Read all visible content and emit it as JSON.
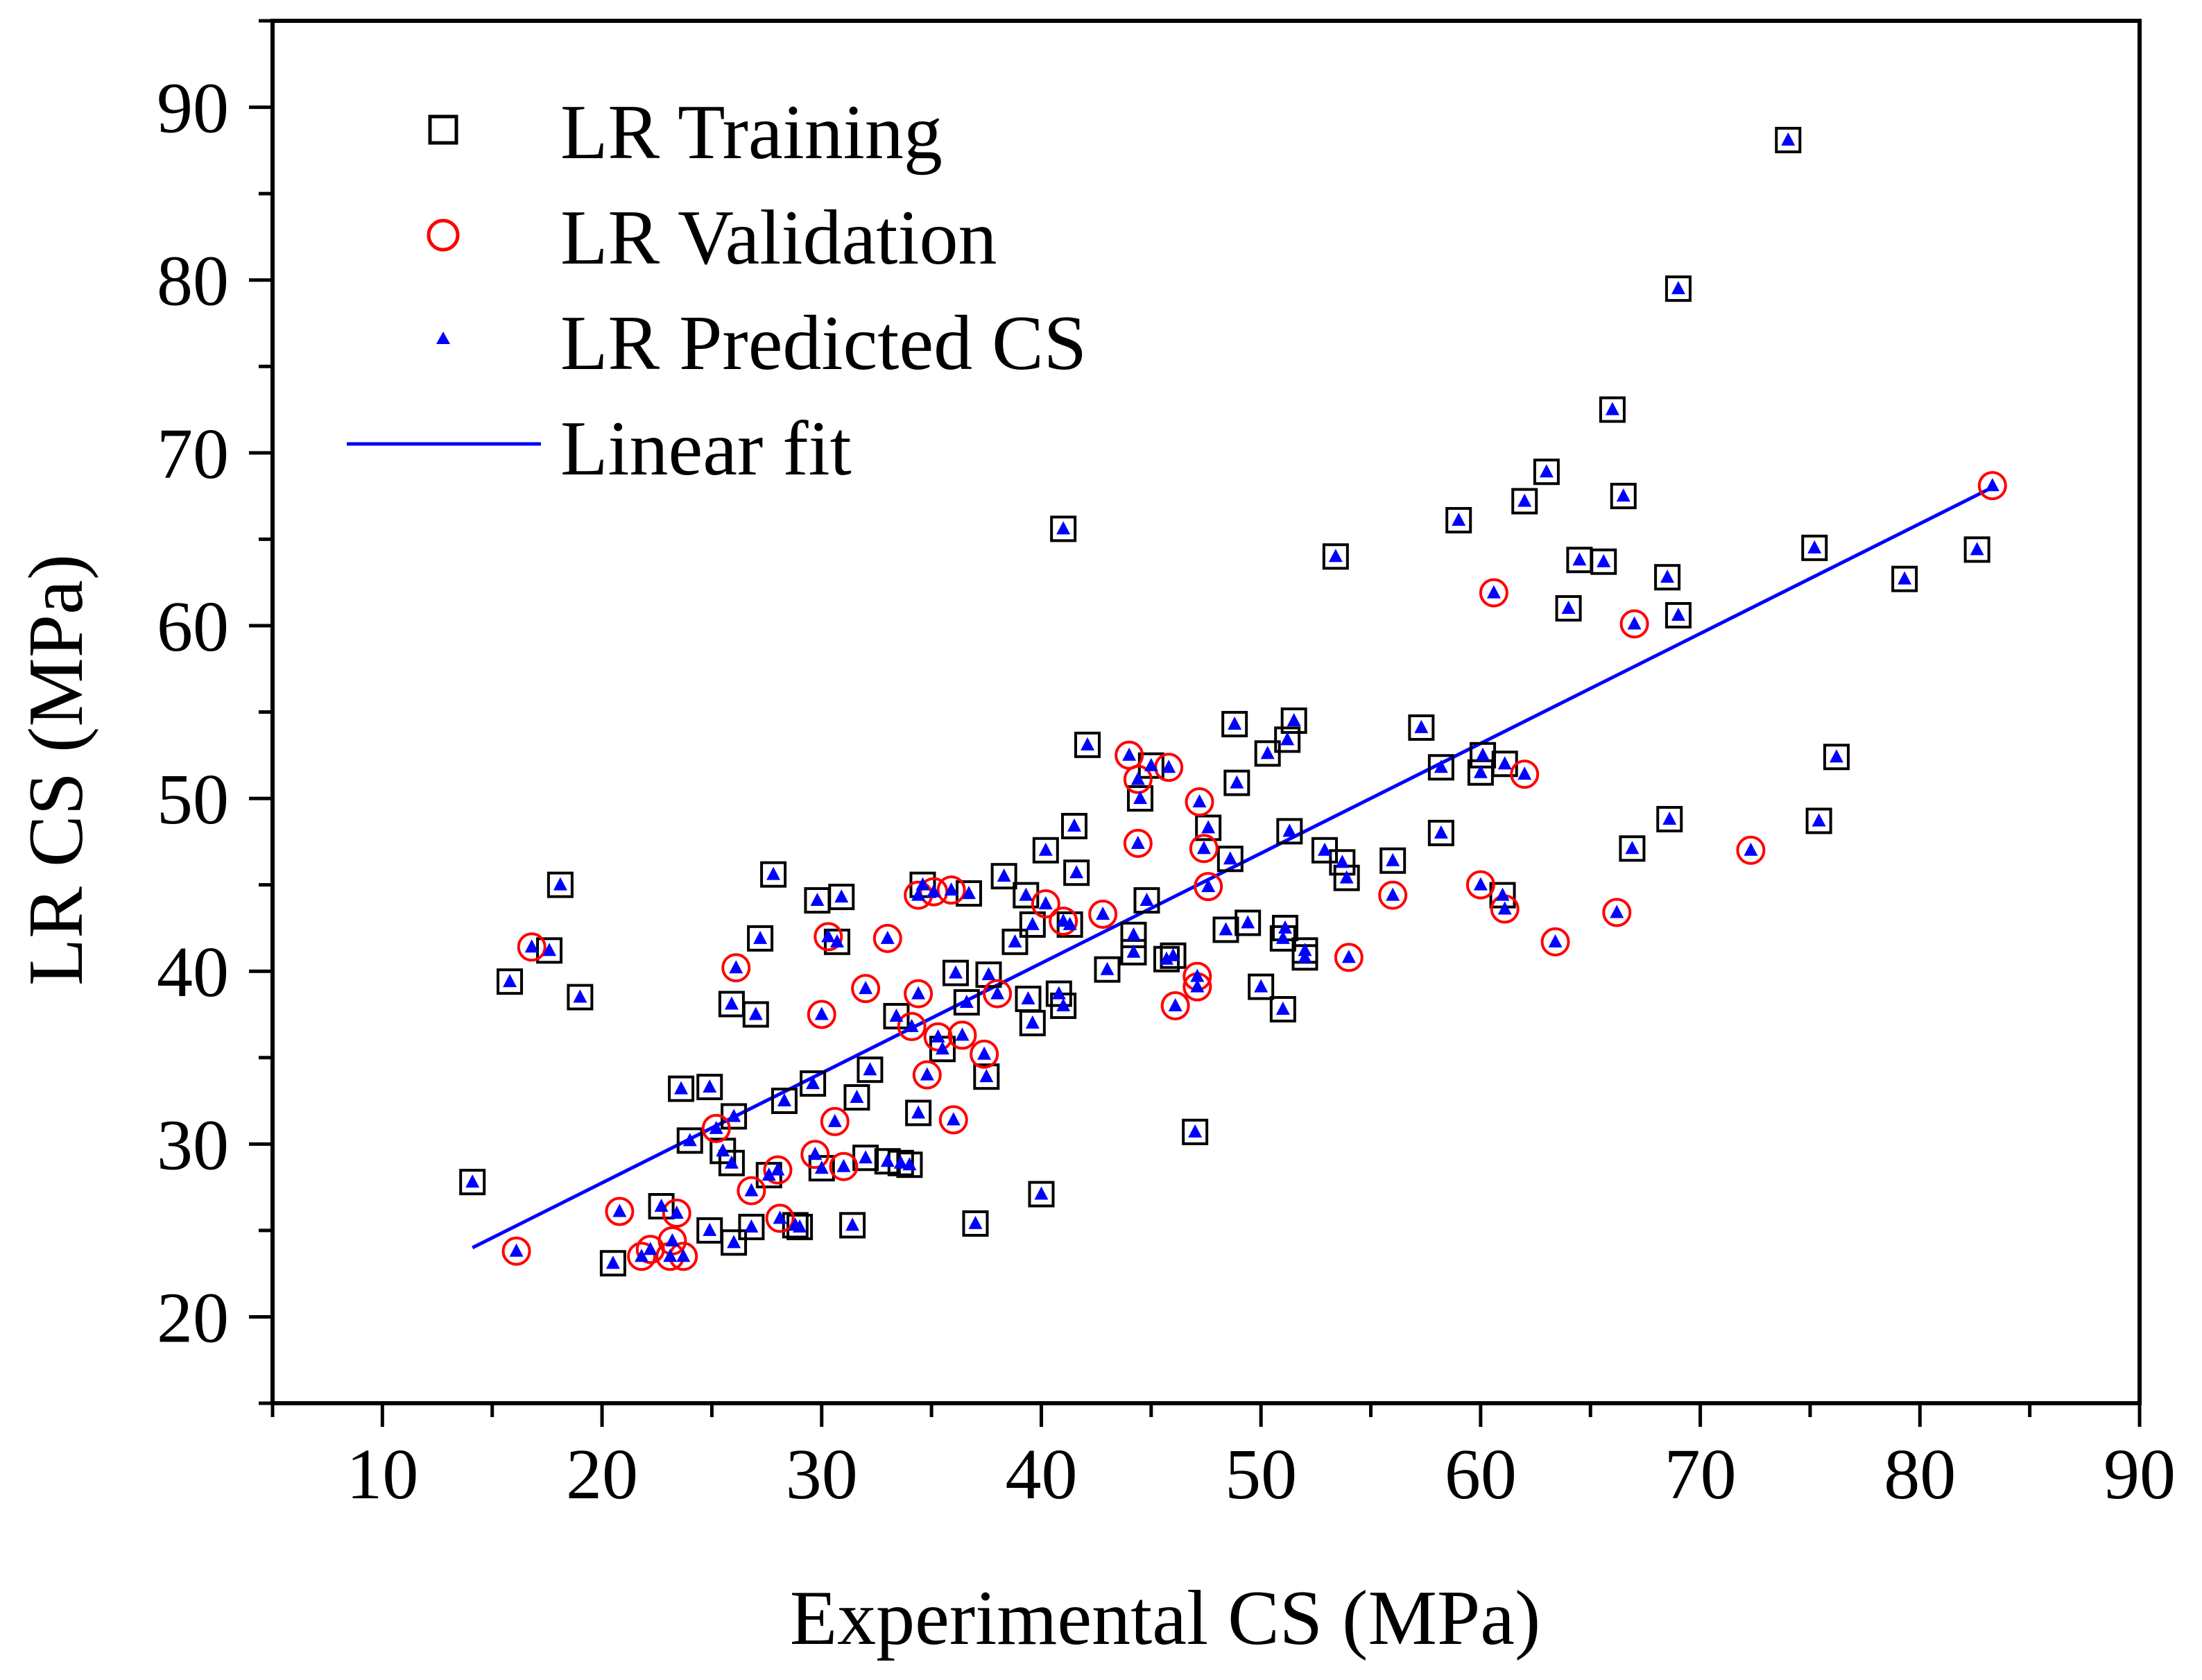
{
  "colors": {
    "training": "#000000",
    "validation": "#ff0000",
    "predicted": "#0000ff",
    "fit": "#0000ff",
    "axes": "#000000"
  },
  "legend": {
    "training_label": "LR Training",
    "validation_label": "LR Validation",
    "predicted_label": "LR Predicted CS",
    "fit_label": "Linear fit",
    "placement": "top-left"
  },
  "chart_data": {
    "type": "scatter",
    "title": "",
    "xlabel": "Experimental CS (MPa)",
    "ylabel": "LR CS (MPa)",
    "xlim": [
      5,
      90
    ],
    "ylim": [
      15,
      95
    ],
    "xticks": [
      "10",
      "20",
      "30",
      "40",
      "50",
      "60",
      "70",
      "80",
      "90"
    ],
    "yticks": [
      "20",
      "30",
      "40",
      "50",
      "60",
      "70",
      "80",
      "90"
    ],
    "grid": false,
    "series": [
      {
        "name": "LR Training",
        "marker": "open-square",
        "points": [
          [
            14.1,
            27.8
          ],
          [
            15.8,
            39.4
          ],
          [
            17.6,
            41.2
          ],
          [
            18.1,
            45.0
          ],
          [
            19.0,
            38.5
          ],
          [
            20.5,
            23.1
          ],
          [
            22.7,
            26.4
          ],
          [
            23.6,
            33.2
          ],
          [
            24.0,
            30.2
          ],
          [
            24.9,
            25.0
          ],
          [
            24.9,
            33.3
          ],
          [
            25.5,
            29.6
          ],
          [
            25.9,
            38.1
          ],
          [
            25.9,
            28.9
          ],
          [
            26.0,
            31.6
          ],
          [
            26.0,
            24.3
          ],
          [
            26.8,
            25.2
          ],
          [
            27.0,
            37.5
          ],
          [
            27.2,
            41.9
          ],
          [
            27.6,
            28.2
          ],
          [
            27.8,
            45.6
          ],
          [
            28.3,
            32.5
          ],
          [
            28.8,
            25.3
          ],
          [
            29.0,
            25.2
          ],
          [
            29.6,
            33.5
          ],
          [
            29.8,
            44.1
          ],
          [
            30.0,
            28.6
          ],
          [
            30.7,
            41.7
          ],
          [
            30.9,
            44.3
          ],
          [
            31.4,
            25.3
          ],
          [
            31.6,
            32.7
          ],
          [
            32.0,
            29.2
          ],
          [
            32.2,
            34.3
          ],
          [
            33.0,
            29.0
          ],
          [
            33.4,
            37.4
          ],
          [
            33.6,
            28.9
          ],
          [
            34.0,
            28.8
          ],
          [
            34.4,
            31.8
          ],
          [
            34.6,
            45.0
          ],
          [
            35.5,
            35.5
          ],
          [
            36.1,
            39.9
          ],
          [
            36.6,
            38.2
          ],
          [
            36.7,
            44.5
          ],
          [
            37.0,
            25.4
          ],
          [
            37.5,
            33.9
          ],
          [
            37.6,
            39.8
          ],
          [
            38.3,
            45.5
          ],
          [
            38.8,
            41.7
          ],
          [
            39.3,
            44.4
          ],
          [
            39.4,
            38.4
          ],
          [
            39.6,
            37.0
          ],
          [
            39.6,
            42.7
          ],
          [
            40.0,
            27.1
          ],
          [
            40.2,
            47.0
          ],
          [
            40.8,
            38.7
          ],
          [
            41.0,
            38.0
          ],
          [
            41.0,
            65.6
          ],
          [
            41.3,
            42.7
          ],
          [
            41.5,
            48.4
          ],
          [
            41.6,
            45.7
          ],
          [
            42.1,
            53.1
          ],
          [
            43.0,
            40.1
          ],
          [
            44.2,
            42.1
          ],
          [
            44.2,
            41.1
          ],
          [
            44.5,
            50.0
          ],
          [
            44.8,
            44.1
          ],
          [
            45.0,
            51.9
          ],
          [
            45.7,
            40.7
          ],
          [
            46.0,
            40.9
          ],
          [
            47.0,
            30.7
          ],
          [
            47.6,
            48.3
          ],
          [
            48.4,
            42.4
          ],
          [
            48.6,
            46.5
          ],
          [
            48.8,
            54.3
          ],
          [
            48.9,
            50.9
          ],
          [
            49.4,
            42.8
          ],
          [
            50.0,
            39.1
          ],
          [
            50.3,
            52.6
          ],
          [
            51.0,
            37.8
          ],
          [
            51.0,
            41.9
          ],
          [
            51.1,
            42.5
          ],
          [
            51.2,
            53.4
          ],
          [
            51.3,
            48.1
          ],
          [
            51.5,
            54.5
          ],
          [
            52.0,
            41.2
          ],
          [
            52.0,
            40.8
          ],
          [
            52.9,
            47.0
          ],
          [
            53.4,
            64.0
          ],
          [
            53.7,
            46.3
          ],
          [
            53.9,
            45.4
          ],
          [
            56.0,
            46.4
          ],
          [
            57.3,
            54.1
          ],
          [
            58.2,
            51.8
          ],
          [
            58.2,
            48.0
          ],
          [
            59.0,
            66.1
          ],
          [
            60.0,
            51.5
          ],
          [
            60.1,
            52.5
          ],
          [
            61.0,
            44.4
          ],
          [
            61.1,
            52.0
          ],
          [
            62.0,
            67.2
          ],
          [
            63.0,
            68.9
          ],
          [
            64.0,
            61.0
          ],
          [
            64.5,
            63.8
          ],
          [
            65.6,
            63.7
          ],
          [
            66.0,
            72.5
          ],
          [
            66.5,
            67.5
          ],
          [
            66.9,
            47.1
          ],
          [
            68.5,
            62.8
          ],
          [
            68.6,
            48.8
          ],
          [
            69.0,
            60.6
          ],
          [
            69.0,
            79.5
          ],
          [
            74.0,
            88.1
          ],
          [
            75.2,
            64.5
          ],
          [
            75.4,
            48.7
          ],
          [
            76.2,
            52.4
          ],
          [
            79.3,
            62.7
          ],
          [
            82.6,
            64.4
          ]
        ]
      },
      {
        "name": "LR Validation",
        "marker": "open-circle",
        "points": [
          [
            16.1,
            23.8
          ],
          [
            16.8,
            41.4
          ],
          [
            20.8,
            26.1
          ],
          [
            21.8,
            23.5
          ],
          [
            22.2,
            23.9
          ],
          [
            23.1,
            23.5
          ],
          [
            23.2,
            24.4
          ],
          [
            23.4,
            26.0
          ],
          [
            23.7,
            23.5
          ],
          [
            25.2,
            30.9
          ],
          [
            26.1,
            40.2
          ],
          [
            26.8,
            27.3
          ],
          [
            28.0,
            28.5
          ],
          [
            28.1,
            25.7
          ],
          [
            29.7,
            29.4
          ],
          [
            30.0,
            37.5
          ],
          [
            30.3,
            42.0
          ],
          [
            30.6,
            31.3
          ],
          [
            31.0,
            28.7
          ],
          [
            32.0,
            39.0
          ],
          [
            33.0,
            41.9
          ],
          [
            34.1,
            36.8
          ],
          [
            34.4,
            38.7
          ],
          [
            34.4,
            44.4
          ],
          [
            34.8,
            34.0
          ],
          [
            35.1,
            44.6
          ],
          [
            35.3,
            36.2
          ],
          [
            35.9,
            44.7
          ],
          [
            36.0,
            31.4
          ],
          [
            36.4,
            36.3
          ],
          [
            37.4,
            35.2
          ],
          [
            38.0,
            38.7
          ],
          [
            40.2,
            43.9
          ],
          [
            41.0,
            42.9
          ],
          [
            42.8,
            43.3
          ],
          [
            44.0,
            52.5
          ],
          [
            44.4,
            51.1
          ],
          [
            44.4,
            47.4
          ],
          [
            45.8,
            51.8
          ],
          [
            46.1,
            38.0
          ],
          [
            47.1,
            39.7
          ],
          [
            47.1,
            39.1
          ],
          [
            47.2,
            49.8
          ],
          [
            47.4,
            47.1
          ],
          [
            47.6,
            44.9
          ],
          [
            54.0,
            40.8
          ],
          [
            56.0,
            44.4
          ],
          [
            60.0,
            45.0
          ],
          [
            60.6,
            61.9
          ],
          [
            61.1,
            43.6
          ],
          [
            62.0,
            51.4
          ],
          [
            63.4,
            41.7
          ],
          [
            66.2,
            43.4
          ],
          [
            67.0,
            60.1
          ],
          [
            72.3,
            47.0
          ],
          [
            83.3,
            68.1
          ]
        ]
      },
      {
        "name": "LR Predicted CS",
        "marker": "filled-triangle",
        "note": "plotted at every training and validation point"
      },
      {
        "name": "Linear fit",
        "line": true,
        "x": [
          14.1,
          83.3
        ],
        "y": [
          24.0,
          68.0
        ]
      }
    ]
  }
}
